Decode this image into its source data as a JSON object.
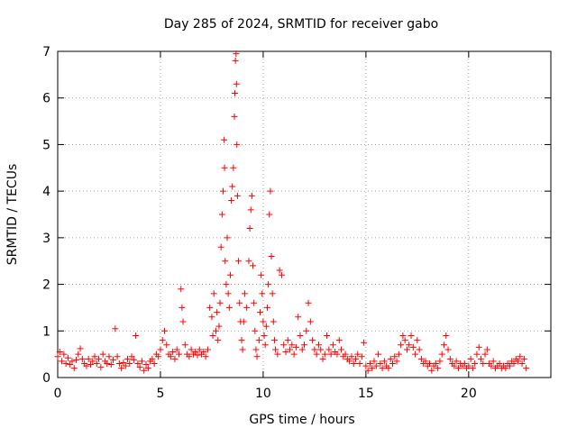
{
  "chart_data": {
    "type": "scatter",
    "title": "Day 285 of 2024, SRMTID for receiver gabo",
    "xlabel": "GPS time / hours",
    "ylabel": "SRMTID / TECUs",
    "xlim": [
      0,
      24
    ],
    "ylim": [
      0,
      7
    ],
    "grid": true,
    "x_ticks": [
      {
        "value": 0,
        "label": "0"
      },
      {
        "value": 5,
        "label": "5"
      },
      {
        "value": 10,
        "label": "10"
      },
      {
        "value": 15,
        "label": "15"
      },
      {
        "value": 20,
        "label": "20"
      }
    ],
    "y_ticks": [
      {
        "value": 0,
        "label": "0"
      },
      {
        "value": 1,
        "label": "1"
      },
      {
        "value": 2,
        "label": "2"
      },
      {
        "value": 3,
        "label": "3"
      },
      {
        "value": 4,
        "label": "4"
      },
      {
        "value": 5,
        "label": "5"
      },
      {
        "value": 6,
        "label": "6"
      },
      {
        "value": 7,
        "label": "7"
      }
    ],
    "marker": "plus",
    "series": [
      {
        "name": "SRMTID",
        "color": "#ff0000",
        "points": [
          [
            0.0,
            0.45
          ],
          [
            0.1,
            0.55
          ],
          [
            0.2,
            0.35
          ],
          [
            0.3,
            0.5
          ],
          [
            0.4,
            0.3
          ],
          [
            0.5,
            0.42
          ],
          [
            0.6,
            0.28
          ],
          [
            0.7,
            0.35
          ],
          [
            0.8,
            0.2
          ],
          [
            0.9,
            0.38
          ],
          [
            1.0,
            0.5
          ],
          [
            1.1,
            0.62
          ],
          [
            1.2,
            0.4
          ],
          [
            1.3,
            0.3
          ],
          [
            1.4,
            0.25
          ],
          [
            1.5,
            0.4
          ],
          [
            1.6,
            0.28
          ],
          [
            1.7,
            0.35
          ],
          [
            1.8,
            0.45
          ],
          [
            1.9,
            0.3
          ],
          [
            2.0,
            0.4
          ],
          [
            2.1,
            0.22
          ],
          [
            2.2,
            0.5
          ],
          [
            2.3,
            0.35
          ],
          [
            2.4,
            0.3
          ],
          [
            2.5,
            0.45
          ],
          [
            2.6,
            0.28
          ],
          [
            2.7,
            0.38
          ],
          [
            2.8,
            1.05
          ],
          [
            2.9,
            0.45
          ],
          [
            3.0,
            0.3
          ],
          [
            3.1,
            0.2
          ],
          [
            3.2,
            0.32
          ],
          [
            3.3,
            0.25
          ],
          [
            3.4,
            0.4
          ],
          [
            3.5,
            0.3
          ],
          [
            3.6,
            0.45
          ],
          [
            3.7,
            0.38
          ],
          [
            3.8,
            0.9
          ],
          [
            3.9,
            0.3
          ],
          [
            4.0,
            0.22
          ],
          [
            4.1,
            0.35
          ],
          [
            4.2,
            0.15
          ],
          [
            4.3,
            0.28
          ],
          [
            4.4,
            0.2
          ],
          [
            4.5,
            0.35
          ],
          [
            4.6,
            0.4
          ],
          [
            4.7,
            0.3
          ],
          [
            4.8,
            0.5
          ],
          [
            4.9,
            0.45
          ],
          [
            5.0,
            0.6
          ],
          [
            5.1,
            0.8
          ],
          [
            5.2,
            1.0
          ],
          [
            5.3,
            0.7
          ],
          [
            5.4,
            0.5
          ],
          [
            5.5,
            0.45
          ],
          [
            5.6,
            0.55
          ],
          [
            5.7,
            0.4
          ],
          [
            5.8,
            0.6
          ],
          [
            5.9,
            0.5
          ],
          [
            6.0,
            1.9
          ],
          [
            6.05,
            1.5
          ],
          [
            6.1,
            1.2
          ],
          [
            6.2,
            0.7
          ],
          [
            6.3,
            0.5
          ],
          [
            6.4,
            0.45
          ],
          [
            6.5,
            0.6
          ],
          [
            6.6,
            0.5
          ],
          [
            6.7,
            0.55
          ],
          [
            6.8,
            0.48
          ],
          [
            6.9,
            0.6
          ],
          [
            7.0,
            0.5
          ],
          [
            7.1,
            0.55
          ],
          [
            7.2,
            0.45
          ],
          [
            7.3,
            0.6
          ],
          [
            7.4,
            1.5
          ],
          [
            7.5,
            1.3
          ],
          [
            7.55,
            0.9
          ],
          [
            7.6,
            1.8
          ],
          [
            7.7,
            1.0
          ],
          [
            7.75,
            1.4
          ],
          [
            7.8,
            0.8
          ],
          [
            7.85,
            1.1
          ],
          [
            7.9,
            1.6
          ],
          [
            7.95,
            2.8
          ],
          [
            8.0,
            3.5
          ],
          [
            8.05,
            4.0
          ],
          [
            8.1,
            5.1
          ],
          [
            8.12,
            4.5
          ],
          [
            8.15,
            2.5
          ],
          [
            8.2,
            2.0
          ],
          [
            8.25,
            3.0
          ],
          [
            8.3,
            1.8
          ],
          [
            8.35,
            1.5
          ],
          [
            8.4,
            2.2
          ],
          [
            8.45,
            3.8
          ],
          [
            8.5,
            4.1
          ],
          [
            8.55,
            4.5
          ],
          [
            8.6,
            5.6
          ],
          [
            8.62,
            6.1
          ],
          [
            8.65,
            6.8
          ],
          [
            8.68,
            6.95
          ],
          [
            8.7,
            6.3
          ],
          [
            8.72,
            5.0
          ],
          [
            8.75,
            3.9
          ],
          [
            8.8,
            2.5
          ],
          [
            8.85,
            1.6
          ],
          [
            8.9,
            1.2
          ],
          [
            8.95,
            0.8
          ],
          [
            9.0,
            0.6
          ],
          [
            9.05,
            1.2
          ],
          [
            9.1,
            1.8
          ],
          [
            9.2,
            1.5
          ],
          [
            9.3,
            2.5
          ],
          [
            9.35,
            3.2
          ],
          [
            9.4,
            3.6
          ],
          [
            9.45,
            3.9
          ],
          [
            9.5,
            2.4
          ],
          [
            9.55,
            1.6
          ],
          [
            9.6,
            1.0
          ],
          [
            9.65,
            0.6
          ],
          [
            9.7,
            0.45
          ],
          [
            9.8,
            0.8
          ],
          [
            9.85,
            1.4
          ],
          [
            9.9,
            2.2
          ],
          [
            9.95,
            1.8
          ],
          [
            10.0,
            1.2
          ],
          [
            10.05,
            0.9
          ],
          [
            10.1,
            0.7
          ],
          [
            10.15,
            1.1
          ],
          [
            10.2,
            1.5
          ],
          [
            10.25,
            2.0
          ],
          [
            10.3,
            3.5
          ],
          [
            10.35,
            4.0
          ],
          [
            10.4,
            2.6
          ],
          [
            10.45,
            1.8
          ],
          [
            10.5,
            1.2
          ],
          [
            10.55,
            0.8
          ],
          [
            10.6,
            0.6
          ],
          [
            10.7,
            0.5
          ],
          [
            10.8,
            2.3
          ],
          [
            10.9,
            2.2
          ],
          [
            11.0,
            0.7
          ],
          [
            11.1,
            0.55
          ],
          [
            11.2,
            0.8
          ],
          [
            11.3,
            0.6
          ],
          [
            11.4,
            0.7
          ],
          [
            11.5,
            0.5
          ],
          [
            11.6,
            0.65
          ],
          [
            11.7,
            1.3
          ],
          [
            11.8,
            0.9
          ],
          [
            11.9,
            0.6
          ],
          [
            12.0,
            0.7
          ],
          [
            12.1,
            1.0
          ],
          [
            12.2,
            1.6
          ],
          [
            12.3,
            1.2
          ],
          [
            12.4,
            0.8
          ],
          [
            12.5,
            0.6
          ],
          [
            12.6,
            0.5
          ],
          [
            12.7,
            0.7
          ],
          [
            12.8,
            0.6
          ],
          [
            12.9,
            0.4
          ],
          [
            13.0,
            0.5
          ],
          [
            13.1,
            0.9
          ],
          [
            13.2,
            0.6
          ],
          [
            13.3,
            0.5
          ],
          [
            13.4,
            0.7
          ],
          [
            13.5,
            0.55
          ],
          [
            13.6,
            0.5
          ],
          [
            13.7,
            0.8
          ],
          [
            13.8,
            0.6
          ],
          [
            13.9,
            0.45
          ],
          [
            14.0,
            0.5
          ],
          [
            14.1,
            0.4
          ],
          [
            14.2,
            0.35
          ],
          [
            14.3,
            0.45
          ],
          [
            14.4,
            0.3
          ],
          [
            14.5,
            0.4
          ],
          [
            14.6,
            0.5
          ],
          [
            14.7,
            0.3
          ],
          [
            14.8,
            0.45
          ],
          [
            14.9,
            0.75
          ],
          [
            15.0,
            0.25
          ],
          [
            15.1,
            0.15
          ],
          [
            15.2,
            0.3
          ],
          [
            15.3,
            0.2
          ],
          [
            15.4,
            0.35
          ],
          [
            15.5,
            0.25
          ],
          [
            15.6,
            0.5
          ],
          [
            15.7,
            0.3
          ],
          [
            15.8,
            0.2
          ],
          [
            15.9,
            0.35
          ],
          [
            16.0,
            0.25
          ],
          [
            16.1,
            0.2
          ],
          [
            16.2,
            0.4
          ],
          [
            16.3,
            0.3
          ],
          [
            16.4,
            0.45
          ],
          [
            16.5,
            0.35
          ],
          [
            16.6,
            0.5
          ],
          [
            16.7,
            0.7
          ],
          [
            16.8,
            0.9
          ],
          [
            16.9,
            0.8
          ],
          [
            17.0,
            0.6
          ],
          [
            17.1,
            0.7
          ],
          [
            17.2,
            0.9
          ],
          [
            17.3,
            0.65
          ],
          [
            17.4,
            0.5
          ],
          [
            17.5,
            0.8
          ],
          [
            17.6,
            0.6
          ],
          [
            17.7,
            0.4
          ],
          [
            17.8,
            0.3
          ],
          [
            17.9,
            0.35
          ],
          [
            18.0,
            0.25
          ],
          [
            18.1,
            0.3
          ],
          [
            18.2,
            0.15
          ],
          [
            18.3,
            0.25
          ],
          [
            18.4,
            0.3
          ],
          [
            18.5,
            0.2
          ],
          [
            18.6,
            0.35
          ],
          [
            18.7,
            0.5
          ],
          [
            18.8,
            0.7
          ],
          [
            18.9,
            0.9
          ],
          [
            19.0,
            0.6
          ],
          [
            19.1,
            0.4
          ],
          [
            19.2,
            0.3
          ],
          [
            19.3,
            0.25
          ],
          [
            19.4,
            0.35
          ],
          [
            19.5,
            0.2
          ],
          [
            19.6,
            0.3
          ],
          [
            19.7,
            0.25
          ],
          [
            19.8,
            0.3
          ],
          [
            19.9,
            0.2
          ],
          [
            20.0,
            0.25
          ],
          [
            20.1,
            0.4
          ],
          [
            20.2,
            0.2
          ],
          [
            20.3,
            0.3
          ],
          [
            20.4,
            0.5
          ],
          [
            20.5,
            0.65
          ],
          [
            20.6,
            0.4
          ],
          [
            20.7,
            0.3
          ],
          [
            20.8,
            0.5
          ],
          [
            20.9,
            0.6
          ],
          [
            21.0,
            0.3
          ],
          [
            21.1,
            0.25
          ],
          [
            21.2,
            0.35
          ],
          [
            21.3,
            0.2
          ],
          [
            21.4,
            0.25
          ],
          [
            21.5,
            0.3
          ],
          [
            21.6,
            0.2
          ],
          [
            21.7,
            0.25
          ],
          [
            21.8,
            0.2
          ],
          [
            21.9,
            0.3
          ],
          [
            22.0,
            0.25
          ],
          [
            22.1,
            0.35
          ],
          [
            22.2,
            0.3
          ],
          [
            22.3,
            0.4
          ],
          [
            22.4,
            0.35
          ],
          [
            22.5,
            0.45
          ],
          [
            22.6,
            0.3
          ],
          [
            22.7,
            0.4
          ],
          [
            22.8,
            0.2
          ]
        ]
      }
    ]
  }
}
